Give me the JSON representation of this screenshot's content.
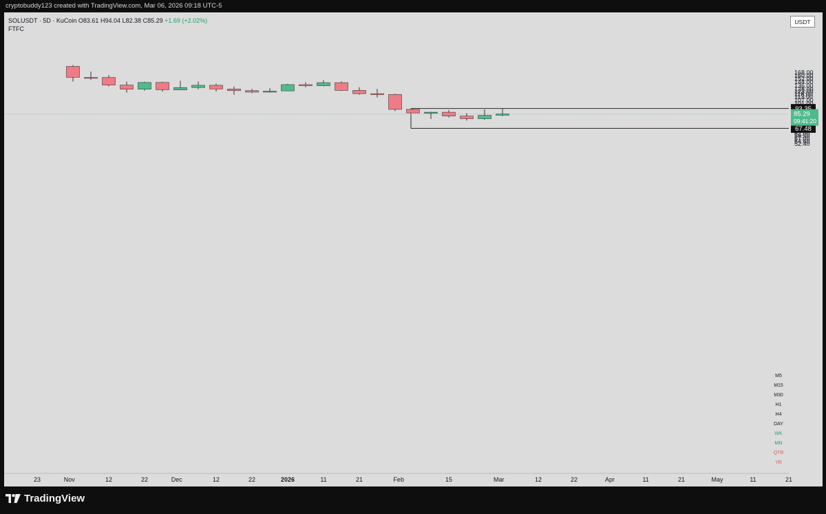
{
  "header": {
    "credit": "cryptobuddy123 created with TradingView.com, Mar 06, 2026 09:18 UTC-5"
  },
  "legend": {
    "symbol": "SOLUSDT · 5D · KuCoin",
    "open_label": "O",
    "open": "83.61",
    "high_label": "H",
    "high": "94.04",
    "low_label": "L",
    "low": "82.38",
    "close_label": "C",
    "close": "85.29",
    "change": "+1.69 (+2.02%)",
    "indicator": "FTFC"
  },
  "currency": "USDT",
  "brand": {
    "name": "TradingView",
    "logo_icon": "tradingview-logo-icon"
  },
  "timeframes": [
    {
      "label": "M5",
      "color": "#131722"
    },
    {
      "label": "M15",
      "color": "#131722"
    },
    {
      "label": "M30",
      "color": "#131722"
    },
    {
      "label": "H1",
      "color": "#131722"
    },
    {
      "label": "H4",
      "color": "#131722"
    },
    {
      "label": "DAY",
      "color": "#131722"
    },
    {
      "label": "WK",
      "color": "#22a06b"
    },
    {
      "label": "MN",
      "color": "#22a06b"
    },
    {
      "label": "QTR",
      "color": "#e0565b"
    },
    {
      "label": "YR",
      "color": "#e0565b"
    }
  ],
  "chart_data": {
    "type": "candlestick",
    "symbol": "SOLUSDT",
    "interval": "5D",
    "exchange": "KuCoin",
    "colors": {
      "up": "#4fbb8c",
      "down": "#ef7b84",
      "wick": "#333333",
      "background": "#dcdcdc"
    },
    "y_axis": {
      "scale": "log",
      "position": "right",
      "range": [
        49.5,
        180
      ],
      "ticks": [
        "168.00",
        "160.00",
        "152.00",
        "144.00",
        "136.00",
        "128.00",
        "123.00",
        "118.00",
        "113.00",
        "107.00",
        "101.00",
        "97.00",
        "89.00",
        "81.00",
        "77.00",
        "74.00",
        "71.00",
        "65.00",
        "62.00",
        "59.50",
        "57.00",
        "54.60",
        "52.40"
      ]
    },
    "x_axis": {
      "ticks": [
        {
          "label": "23",
          "date": "2025-10-23"
        },
        {
          "label": "Nov",
          "date": "2025-11-01"
        },
        {
          "label": "12",
          "date": "2025-11-12"
        },
        {
          "label": "22",
          "date": "2025-11-22"
        },
        {
          "label": "Dec",
          "date": "2025-12-01"
        },
        {
          "label": "12",
          "date": "2025-12-12"
        },
        {
          "label": "22",
          "date": "2025-12-22"
        },
        {
          "label": "2026",
          "date": "2026-01-01"
        },
        {
          "label": "11",
          "date": "2026-01-11"
        },
        {
          "label": "21",
          "date": "2026-01-21"
        },
        {
          "label": "Feb",
          "date": "2026-02-01"
        },
        {
          "label": "15",
          "date": "2026-02-15"
        },
        {
          "label": "Mar",
          "date": "2026-03-01"
        },
        {
          "label": "12",
          "date": "2026-03-12"
        },
        {
          "label": "22",
          "date": "2026-03-22"
        },
        {
          "label": "Apr",
          "date": "2026-04-01"
        },
        {
          "label": "11",
          "date": "2026-04-11"
        },
        {
          "label": "21",
          "date": "2026-04-21"
        },
        {
          "label": "May",
          "date": "2026-05-01"
        },
        {
          "label": "11",
          "date": "2026-05-11"
        },
        {
          "label": "21",
          "date": "2026-05-21"
        }
      ]
    },
    "candles": [
      {
        "date": "2025-11-02",
        "open": 186,
        "high": 190,
        "low": 145,
        "close": 155.5
      },
      {
        "date": "2025-11-07",
        "open": 155.5,
        "high": 171,
        "low": 149,
        "close": 155
      },
      {
        "date": "2025-11-12",
        "open": 155,
        "high": 161,
        "low": 134,
        "close": 137
      },
      {
        "date": "2025-11-17",
        "open": 137,
        "high": 145,
        "low": 121,
        "close": 128
      },
      {
        "date": "2025-11-22",
        "open": 128,
        "high": 145,
        "low": 125,
        "close": 143
      },
      {
        "date": "2025-11-27",
        "open": 143,
        "high": 144.5,
        "low": 123,
        "close": 127
      },
      {
        "date": "2025-12-02",
        "open": 126.5,
        "high": 147,
        "low": 126,
        "close": 131.5
      },
      {
        "date": "2025-12-07",
        "open": 131.5,
        "high": 145,
        "low": 128,
        "close": 136.5
      },
      {
        "date": "2025-12-12",
        "open": 136.5,
        "high": 140,
        "low": 123.5,
        "close": 128.5
      },
      {
        "date": "2025-12-17",
        "open": 128.5,
        "high": 133.5,
        "low": 117,
        "close": 125
      },
      {
        "date": "2025-12-22",
        "open": 125,
        "high": 128.5,
        "low": 120,
        "close": 122
      },
      {
        "date": "2025-12-27",
        "open": 122,
        "high": 130,
        "low": 121.5,
        "close": 124
      },
      {
        "date": "2026-01-01",
        "open": 124.5,
        "high": 140,
        "low": 124,
        "close": 138
      },
      {
        "date": "2026-01-06",
        "open": 138,
        "high": 143.5,
        "low": 132,
        "close": 135.5
      },
      {
        "date": "2026-01-11",
        "open": 135.5,
        "high": 148.5,
        "low": 134.5,
        "close": 142.5
      },
      {
        "date": "2026-01-16",
        "open": 142.5,
        "high": 145.5,
        "low": 124.5,
        "close": 125.5
      },
      {
        "date": "2026-01-21",
        "open": 125.5,
        "high": 132,
        "low": 117,
        "close": 119
      },
      {
        "date": "2026-01-26",
        "open": 119,
        "high": 128.5,
        "low": 112,
        "close": 117.5
      },
      {
        "date": "2026-01-31",
        "open": 117.5,
        "high": 119,
        "low": 89.5,
        "close": 92
      },
      {
        "date": "2026-02-05",
        "open": 92,
        "high": 93.3,
        "low": 86.5,
        "close": 86.8
      },
      {
        "date": "2026-02-10",
        "open": 86.8,
        "high": 88.5,
        "low": 78.5,
        "close": 87.8
      },
      {
        "date": "2026-02-15",
        "open": 87.8,
        "high": 91,
        "low": 80.5,
        "close": 82.5
      },
      {
        "date": "2026-02-20",
        "open": 82.5,
        "high": 86.5,
        "low": 76.5,
        "close": 79
      },
      {
        "date": "2026-02-25",
        "open": 79,
        "high": 92,
        "low": 77.5,
        "close": 83.5
      },
      {
        "date": "2026-03-02",
        "open": 83.61,
        "high": 94.04,
        "low": 82.38,
        "close": 85.29
      }
    ],
    "current_price": {
      "value": 85.29,
      "label": "85.29",
      "countdown": "09:41:20",
      "color": "#4fbb8c"
    },
    "range_box": {
      "start_date": "2026-02-05",
      "high": 93.35,
      "high_label": "93.35",
      "low": 67.48,
      "low_label": "67.48"
    }
  }
}
